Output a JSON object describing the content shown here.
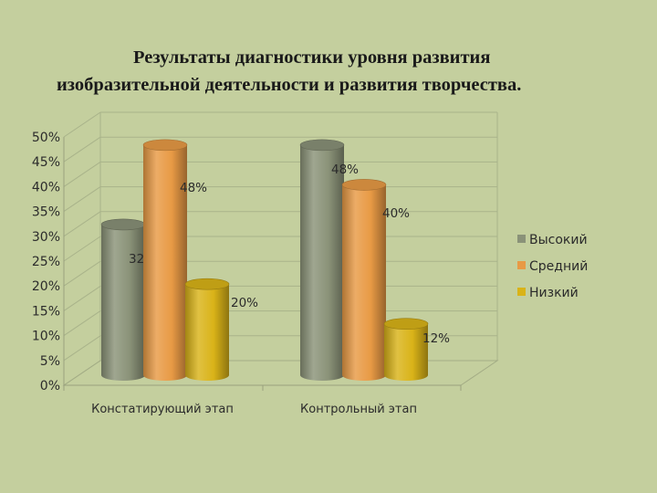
{
  "chart_data": {
    "type": "bar",
    "title_line1": "Результаты диагностики уровня развития",
    "title_line2": "изобразительной деятельности и развития творчества.",
    "categories": [
      "Констатирующий этап",
      "Контрольный этап"
    ],
    "series": [
      {
        "name": "Высокий",
        "values": [
          32,
          48
        ],
        "color": "#8a9278"
      },
      {
        "name": "Средний",
        "values": [
          48,
          40
        ],
        "color": "#e89a45"
      },
      {
        "name": "Низкий",
        "values": [
          20,
          12
        ],
        "color": "#d9b318"
      }
    ],
    "data_labels": [
      [
        "32%",
        "48%"
      ],
      [
        "48%",
        "40%"
      ],
      [
        "20%",
        "12%"
      ]
    ],
    "y_ticks": [
      "0%",
      "5%",
      "10%",
      "15%",
      "20%",
      "25%",
      "30%",
      "35%",
      "40%",
      "45%",
      "50%"
    ],
    "ylim": [
      0,
      50
    ],
    "legend_position": "right",
    "style": "3d-cylinder"
  }
}
